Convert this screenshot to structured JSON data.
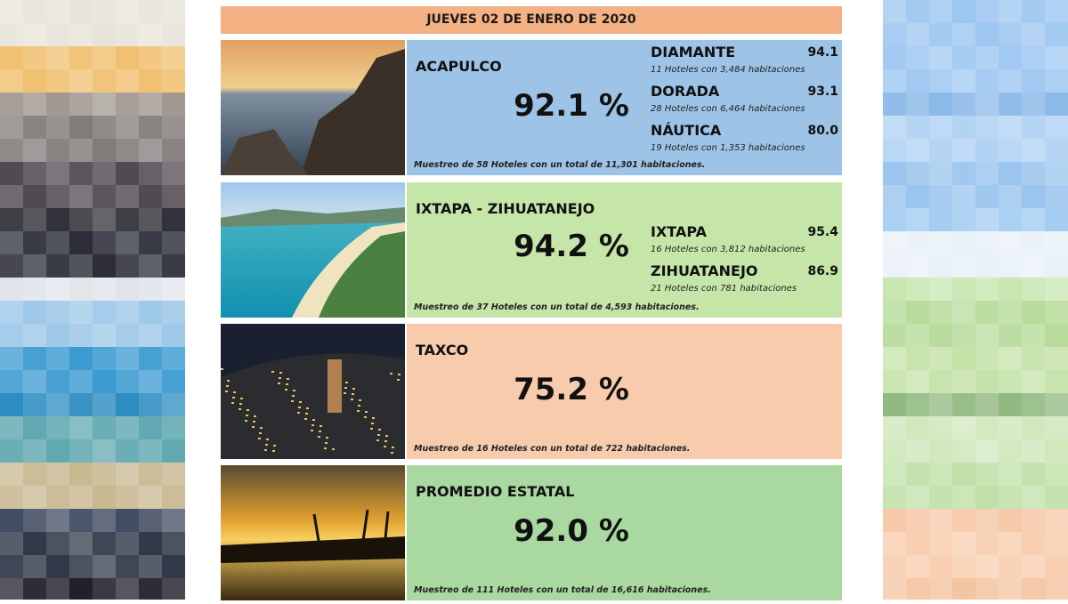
{
  "header": {
    "date": "JUEVES 02 DE ENERO DE 2020"
  },
  "sections": [
    {
      "name": "ACAPULCO",
      "percent": "92.1 %",
      "sample": "Muestreo de 58 Hoteles con un total de 11,301 habitaciones.",
      "zones": [
        {
          "name": "DIAMANTE",
          "value": "94.1",
          "detail": "11 Hoteles con 3,484 habitaciones"
        },
        {
          "name": "DORADA",
          "value": "93.1",
          "detail": "28 Hoteles con 6,464 habitaciones"
        },
        {
          "name": "NÁUTICA",
          "value": "80.0",
          "detail": "19 Hoteles con 1,353 habitaciones"
        }
      ]
    },
    {
      "name": "IXTAPA - ZIHUATANEJO",
      "percent": "94.2 %",
      "sample": "Muestreo de 37 Hoteles con un total de 4,593 habitaciones.",
      "zones": [
        {
          "name": "IXTAPA",
          "value": "95.4",
          "detail": "16 Hoteles con 3,812 habitaciones"
        },
        {
          "name": "ZIHUATANEJO",
          "value": "86.9",
          "detail": "21 Hoteles con 781 habitaciones"
        }
      ]
    },
    {
      "name": "TAXCO",
      "percent": "75.2 %",
      "sample": "Muestreo de 16 Hoteles con un total de 722 habitaciones.",
      "zones": []
    },
    {
      "name": "PROMEDIO ESTATAL",
      "percent": "92.0 %",
      "sample": "Muestreo de 111 Hoteles con un total de 16,616 habitaciones.",
      "zones": []
    }
  ]
}
